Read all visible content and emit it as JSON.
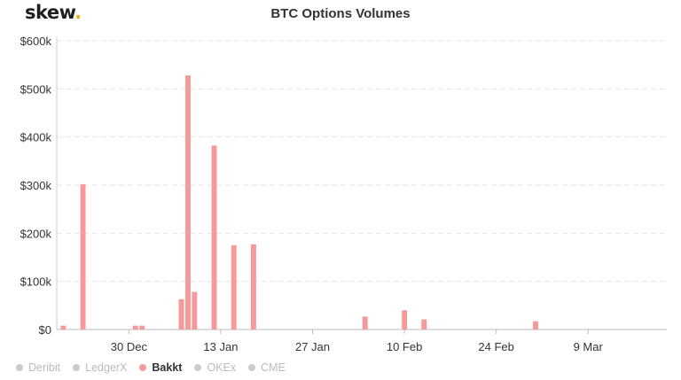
{
  "brand": {
    "name": "skew",
    "dot": "."
  },
  "chart_data": {
    "type": "bar",
    "title": "BTC Options Volumes",
    "xlabel": "",
    "ylabel": "",
    "y_ticks": [
      "$0",
      "$100k",
      "$200k",
      "$300k",
      "$400k",
      "$500k",
      "$600k"
    ],
    "ylim": [
      0,
      600000
    ],
    "x_ticks": [
      {
        "label": "30 Dec",
        "date": "2019-12-30"
      },
      {
        "label": "13 Jan",
        "date": "2020-01-13"
      },
      {
        "label": "27 Jan",
        "date": "2020-01-27"
      },
      {
        "label": "10 Feb",
        "date": "2020-02-10"
      },
      {
        "label": "24 Feb",
        "date": "2020-02-24"
      },
      {
        "label": "9 Mar",
        "date": "2020-03-09"
      }
    ],
    "xlim": [
      "2019-12-19",
      "2020-03-21"
    ],
    "grid": true,
    "legend_position": "bottom-left",
    "series": [
      {
        "name": "Bakkt",
        "color": "#f7999b",
        "points": [
          {
            "date": "2019-12-20",
            "value": 8000
          },
          {
            "date": "2019-12-23",
            "value": 302000
          },
          {
            "date": "2019-12-31",
            "value": 8000
          },
          {
            "date": "2020-01-01",
            "value": 8000
          },
          {
            "date": "2020-01-07",
            "value": 63000
          },
          {
            "date": "2020-01-08",
            "value": 528000
          },
          {
            "date": "2020-01-09",
            "value": 78000
          },
          {
            "date": "2020-01-12",
            "value": 382000
          },
          {
            "date": "2020-01-15",
            "value": 175000
          },
          {
            "date": "2020-01-18",
            "value": 177000
          },
          {
            "date": "2020-02-04",
            "value": 27000
          },
          {
            "date": "2020-02-10",
            "value": 40000
          },
          {
            "date": "2020-02-13",
            "value": 21000
          },
          {
            "date": "2020-03-01",
            "value": 17000
          }
        ]
      }
    ]
  },
  "legend": [
    {
      "label": "Deribit",
      "active": false,
      "color": "#cccccc"
    },
    {
      "label": "LedgerX",
      "active": false,
      "color": "#cccccc"
    },
    {
      "label": "Bakkt",
      "active": true,
      "color": "#f7999b"
    },
    {
      "label": "OKEx",
      "active": false,
      "color": "#cccccc"
    },
    {
      "label": "CME",
      "active": false,
      "color": "#cccccc"
    }
  ]
}
